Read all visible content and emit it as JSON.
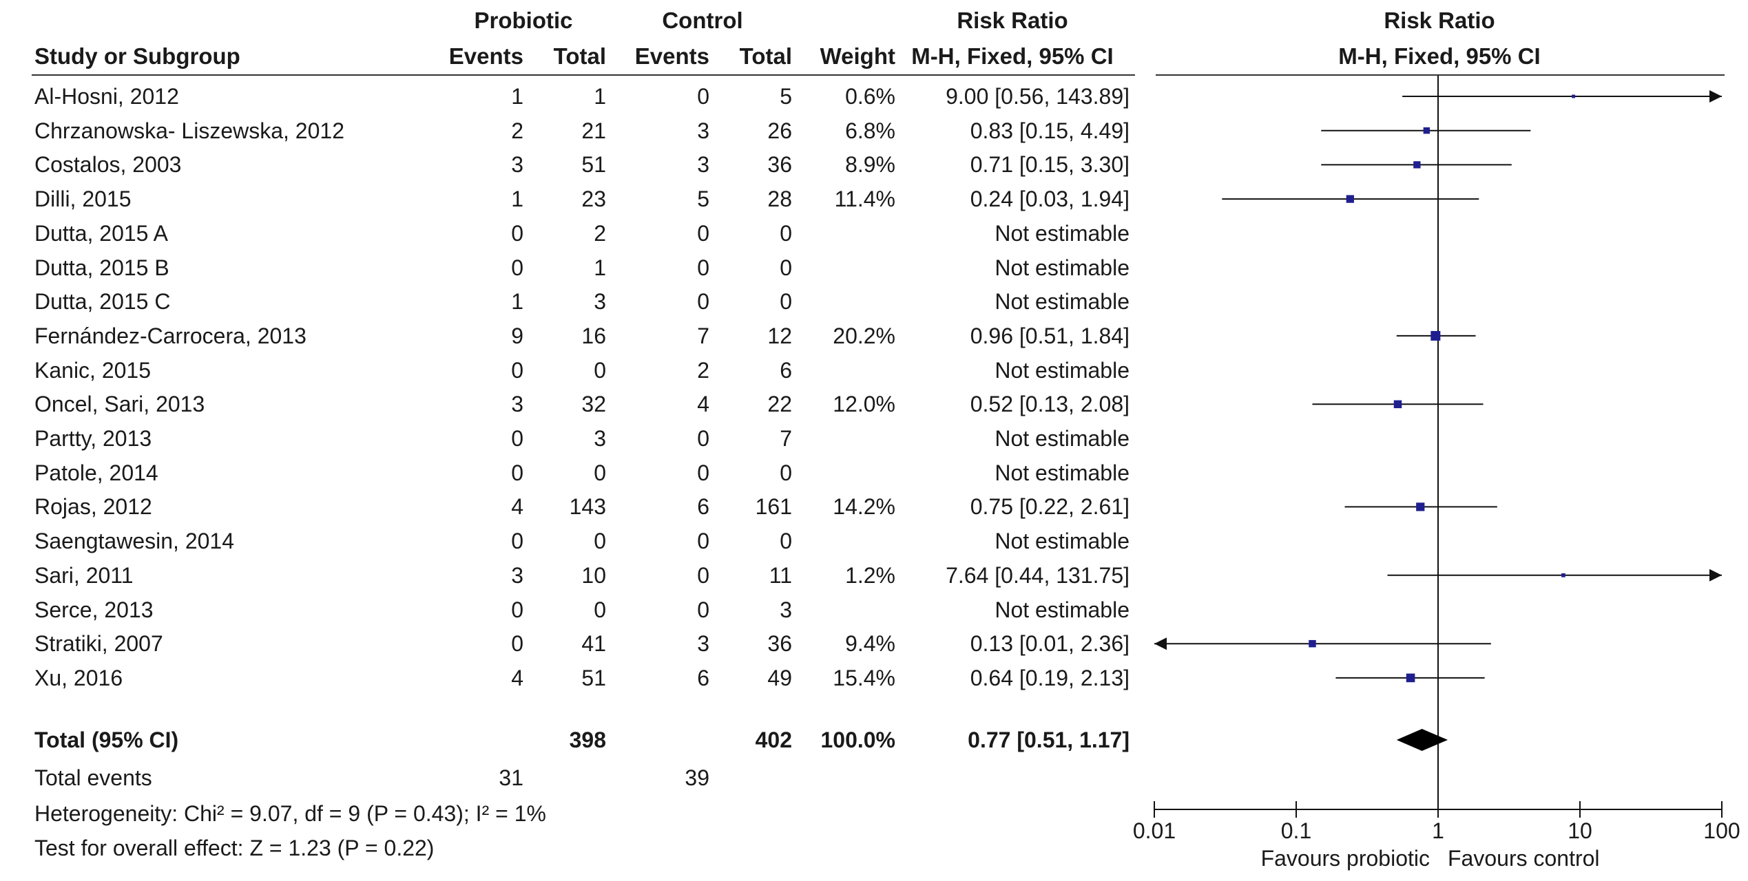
{
  "header": {
    "study": "Study or Subgroup",
    "probiotic": "Probiotic",
    "control": "Control",
    "events": "Events",
    "total": "Total",
    "weight": "Weight",
    "rr_title": "Risk Ratio",
    "rr_method": "M-H, Fixed, 95% CI",
    "plot_title": "Risk Ratio",
    "plot_method": "M-H, Fixed, 95% CI"
  },
  "studies": [
    {
      "name": "Al-Hosni, 2012",
      "pe": "1",
      "pt": "1",
      "ce": "0",
      "ct": "5",
      "weight": "0.6%",
      "ci": "9.00 [0.56, 143.89]"
    },
    {
      "name": "Chrzanowska- Liszewska, 2012",
      "pe": "2",
      "pt": "21",
      "ce": "3",
      "ct": "26",
      "weight": "6.8%",
      "ci": "0.83 [0.15, 4.49]"
    },
    {
      "name": "Costalos, 2003",
      "pe": "3",
      "pt": "51",
      "ce": "3",
      "ct": "36",
      "weight": "8.9%",
      "ci": "0.71 [0.15, 3.30]"
    },
    {
      "name": "Dilli, 2015",
      "pe": "1",
      "pt": "23",
      "ce": "5",
      "ct": "28",
      "weight": "11.4%",
      "ci": "0.24 [0.03, 1.94]"
    },
    {
      "name": "Dutta, 2015 A",
      "pe": "0",
      "pt": "2",
      "ce": "0",
      "ct": "0",
      "weight": "",
      "ci": "Not estimable"
    },
    {
      "name": "Dutta, 2015 B",
      "pe": "0",
      "pt": "1",
      "ce": "0",
      "ct": "0",
      "weight": "",
      "ci": "Not estimable"
    },
    {
      "name": "Dutta, 2015 C",
      "pe": "1",
      "pt": "3",
      "ce": "0",
      "ct": "0",
      "weight": "",
      "ci": "Not estimable"
    },
    {
      "name": "Fernández-Carrocera, 2013",
      "pe": "9",
      "pt": "16",
      "ce": "7",
      "ct": "12",
      "weight": "20.2%",
      "ci": "0.96 [0.51, 1.84]"
    },
    {
      "name": "Kanic, 2015",
      "pe": "0",
      "pt": "0",
      "ce": "2",
      "ct": "6",
      "weight": "",
      "ci": "Not estimable"
    },
    {
      "name": "Oncel, Sari, 2013",
      "pe": "3",
      "pt": "32",
      "ce": "4",
      "ct": "22",
      "weight": "12.0%",
      "ci": "0.52 [0.13, 2.08]"
    },
    {
      "name": "Partty, 2013",
      "pe": "0",
      "pt": "3",
      "ce": "0",
      "ct": "7",
      "weight": "",
      "ci": "Not estimable"
    },
    {
      "name": "Patole, 2014",
      "pe": "0",
      "pt": "0",
      "ce": "0",
      "ct": "0",
      "weight": "",
      "ci": "Not estimable"
    },
    {
      "name": "Rojas, 2012",
      "pe": "4",
      "pt": "143",
      "ce": "6",
      "ct": "161",
      "weight": "14.2%",
      "ci": "0.75 [0.22, 2.61]"
    },
    {
      "name": "Saengtawesin, 2014",
      "pe": "0",
      "pt": "0",
      "ce": "0",
      "ct": "0",
      "weight": "",
      "ci": "Not estimable"
    },
    {
      "name": "Sari, 2011",
      "pe": "3",
      "pt": "10",
      "ce": "0",
      "ct": "11",
      "weight": "1.2%",
      "ci": "7.64 [0.44, 131.75]"
    },
    {
      "name": "Serce, 2013",
      "pe": "0",
      "pt": "0",
      "ce": "0",
      "ct": "3",
      "weight": "",
      "ci": "Not estimable"
    },
    {
      "name": "Stratiki, 2007",
      "pe": "0",
      "pt": "41",
      "ce": "3",
      "ct": "36",
      "weight": "9.4%",
      "ci": "0.13 [0.01, 2.36]"
    },
    {
      "name": "Xu, 2016",
      "pe": "4",
      "pt": "51",
      "ce": "6",
      "ct": "49",
      "weight": "15.4%",
      "ci": "0.64 [0.19, 2.13]"
    }
  ],
  "total": {
    "label": "Total (95% CI)",
    "pt": "398",
    "ct": "402",
    "weight": "100.0%",
    "ci": "0.77 [0.51, 1.17]"
  },
  "total_events": {
    "label": "Total events",
    "pe": "31",
    "ce": "39"
  },
  "heterogeneity": "Heterogeneity: Chi² = 9.07, df = 9 (P = 0.43); I² = 1%",
  "overall_effect": "Test for overall effect: Z = 1.23 (P = 0.22)",
  "colors": {
    "marker": "#1f1f8f",
    "line": "#111111",
    "text": "#1a1a1a"
  },
  "chart_data": {
    "type": "forest",
    "title": "Risk Ratio",
    "subtitle": "M-H, Fixed, 95% CI",
    "scale": "log",
    "xlim": [
      0.01,
      100
    ],
    "ticks": [
      0.01,
      0.1,
      1,
      10,
      100
    ],
    "tick_labels": [
      "0.01",
      "0.1",
      "1",
      "10",
      "100"
    ],
    "favours_left": "Favours probiotic",
    "favours_right": "Favours control",
    "points": [
      {
        "row": 0,
        "rr": 9.0,
        "lo": 0.56,
        "hi": 143.89,
        "weight": 0.6
      },
      {
        "row": 1,
        "rr": 0.83,
        "lo": 0.15,
        "hi": 4.49,
        "weight": 6.8
      },
      {
        "row": 2,
        "rr": 0.71,
        "lo": 0.15,
        "hi": 3.3,
        "weight": 8.9
      },
      {
        "row": 3,
        "rr": 0.24,
        "lo": 0.03,
        "hi": 1.94,
        "weight": 11.4
      },
      {
        "row": 7,
        "rr": 0.96,
        "lo": 0.51,
        "hi": 1.84,
        "weight": 20.2
      },
      {
        "row": 9,
        "rr": 0.52,
        "lo": 0.13,
        "hi": 2.08,
        "weight": 12.0
      },
      {
        "row": 12,
        "rr": 0.75,
        "lo": 0.22,
        "hi": 2.61,
        "weight": 14.2
      },
      {
        "row": 14,
        "rr": 7.64,
        "lo": 0.44,
        "hi": 131.75,
        "weight": 1.2
      },
      {
        "row": 16,
        "rr": 0.13,
        "lo": 0.01,
        "hi": 2.36,
        "weight": 9.4
      },
      {
        "row": 17,
        "rr": 0.64,
        "lo": 0.19,
        "hi": 2.13,
        "weight": 15.4
      }
    ],
    "pooled": {
      "rr": 0.77,
      "lo": 0.51,
      "hi": 1.17,
      "weight": 100.0
    }
  }
}
